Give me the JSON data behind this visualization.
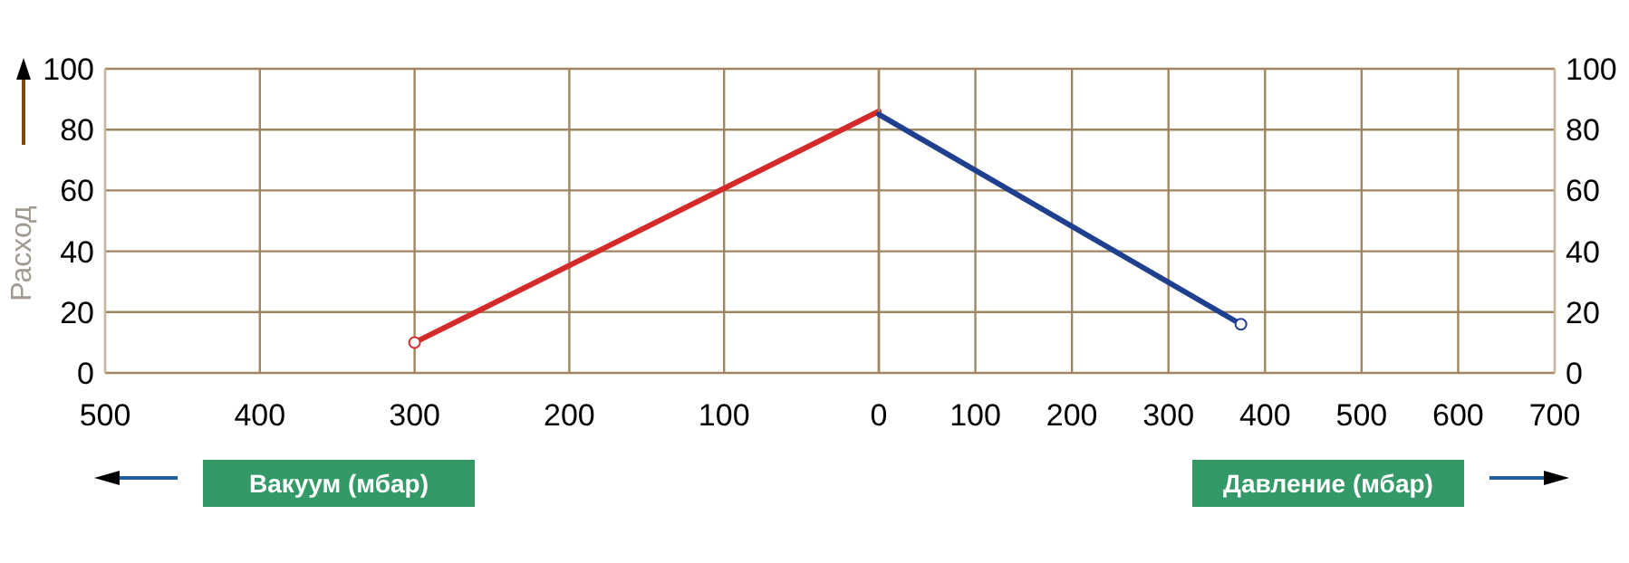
{
  "chart_data": [
    {
      "type": "line",
      "ylabel": "Расход",
      "xlabel": "Вакуум (мбар)",
      "xlim": [
        500,
        0
      ],
      "xticks": [
        500,
        400,
        300,
        200,
        100,
        {
          "value": 0,
          "label": null
        }
      ],
      "ylim": [
        0,
        100
      ],
      "yticks": [
        0,
        20,
        40,
        60,
        80,
        100
      ],
      "grid": true,
      "series": [
        {
          "color": "#d42a2a",
          "x": [
            300,
            0
          ],
          "values": [
            10,
            86
          ]
        }
      ]
    },
    {
      "type": "line",
      "xlabel": "Давление (мбар)",
      "xlim": [
        0,
        700
      ],
      "xticks": [
        0,
        100,
        200,
        300,
        400,
        500,
        600,
        700
      ],
      "ylim": [
        0,
        100
      ],
      "yticks": [
        0,
        20,
        40,
        60,
        80,
        100
      ],
      "grid": true,
      "series": [
        {
          "color": "#1f3f8f",
          "x": [
            0,
            375
          ],
          "values": [
            85,
            16
          ]
        }
      ]
    }
  ]
}
